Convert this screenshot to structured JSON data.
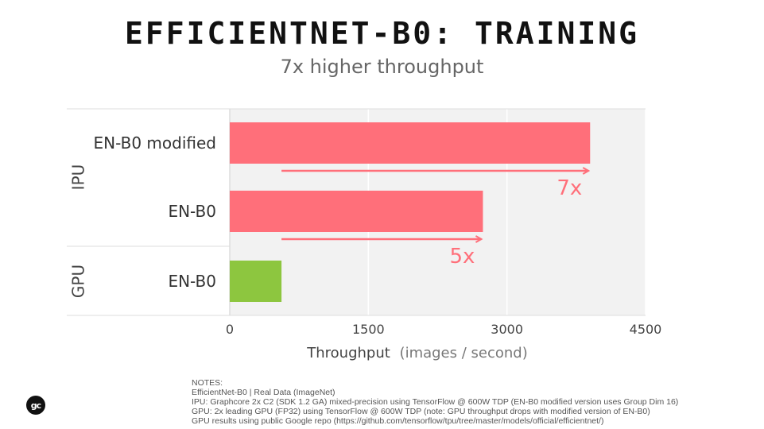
{
  "title": "EFFICIENTNET-B0: TRAINING",
  "subtitle": "7x higher throughput",
  "chart_data": {
    "type": "bar",
    "orientation": "horizontal",
    "groups": [
      {
        "name": "IPU",
        "categories": [
          "EN-B0 modified",
          "EN-B0"
        ]
      },
      {
        "name": "GPU",
        "categories": [
          "EN-B0"
        ]
      }
    ],
    "categories": [
      "EN-B0 modified",
      "EN-B0",
      "EN-B0"
    ],
    "values": [
      3900,
      2740,
      560
    ],
    "colors": [
      "#ff6f7a",
      "#ff6f7a",
      "#8dc63f"
    ],
    "xlim": [
      0,
      4500
    ],
    "xticks": [
      "0",
      "1500",
      "3000",
      "4500"
    ],
    "xlabel": "Throughput",
    "xlabel_suffix": "(images / second)",
    "annotations": [
      {
        "text": "7x",
        "from": 560,
        "to": 3900,
        "bar": 0
      },
      {
        "text": "5x",
        "from": 560,
        "to": 2740,
        "bar": 1
      }
    ],
    "grid": true
  },
  "notes": {
    "heading": "NOTES:",
    "lines": [
      "EfficientNet-B0 | Real Data (ImageNet)",
      "IPU: Graphcore 2x C2 (SDK 1.2 GA) mixed-precision using TensorFlow @ 600W TDP (EN-B0 modified version uses Group Dim 16)",
      "GPU: 2x leading GPU (FP32) using TensorFlow @ 600W TDP (note: GPU throughput drops with modified version of EN-B0)",
      "GPU results using public Google repo (https://github.com/tensorflow/tpu/tree/master/models/official/efficientnet/)"
    ]
  },
  "logo_text": "gc",
  "colors": {
    "ipu": "#ff6f7a",
    "gpu": "#8dc63f",
    "plot_bg": "#f2f2f2"
  }
}
